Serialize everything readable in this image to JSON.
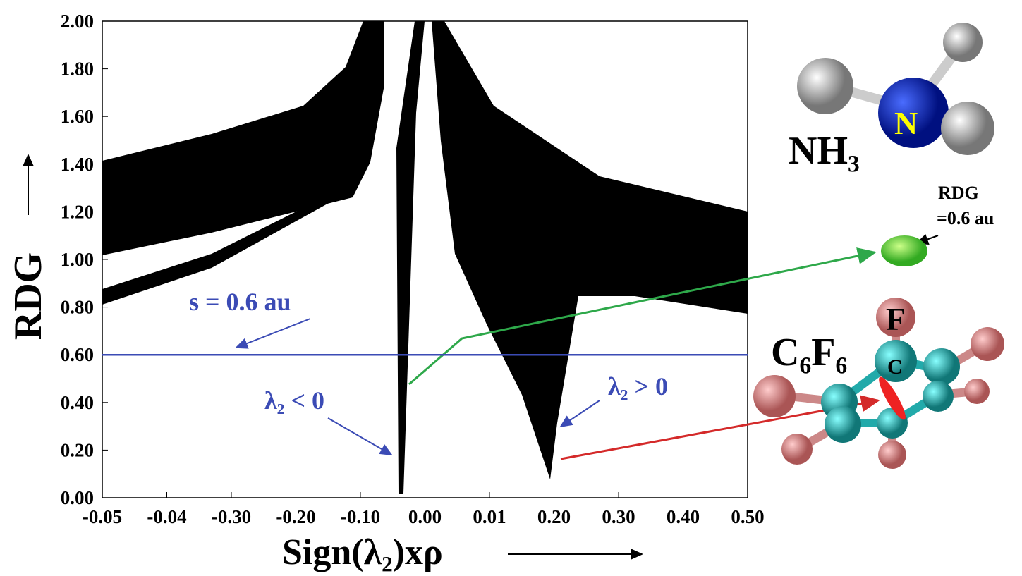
{
  "chart_data": {
    "type": "scatter",
    "x_label": "Sign(λ₂)xρ",
    "y_label": "RDG",
    "categories": [
      "-0.05",
      "-0.04",
      "-0.30",
      "-0.20",
      "-0.10",
      "0.00",
      "0.01",
      "0.20",
      "0.30",
      "0.40",
      "0.50"
    ],
    "ylim": [
      0,
      2
    ],
    "yticks": [
      {
        "value": 0,
        "label": "0.00"
      },
      {
        "value": 0.2,
        "label": "0.20"
      },
      {
        "value": 0.4,
        "label": "0.40"
      },
      {
        "value": 0.6,
        "label": "0.60"
      },
      {
        "value": 0.8,
        "label": "0.80"
      },
      {
        "value": 1,
        "label": "1.00"
      },
      {
        "value": 1.2,
        "label": "1.20"
      },
      {
        "value": 1.4,
        "label": "1.40"
      },
      {
        "value": 1.6,
        "label": "1.60"
      },
      {
        "value": 1.8,
        "label": "1.80"
      },
      {
        "value": 2,
        "label": "2.00"
      }
    ],
    "threshold": {
      "value": 0.6,
      "label": "s = 0.6 au",
      "color": "#3b4bb5"
    },
    "annotations": [
      "λ₂ < 0",
      "λ₂ > 0",
      "RDG",
      "=0.6 au"
    ],
    "molecules": {
      "nh3": {
        "name": "NH₃",
        "atom": "N"
      },
      "c6f6": {
        "name": "C₆F₆",
        "atoms": [
          "F",
          "C"
        ]
      }
    }
  }
}
